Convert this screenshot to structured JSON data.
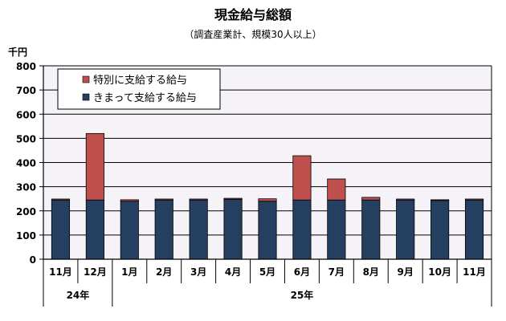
{
  "chart_data": {
    "type": "bar",
    "stacked": true,
    "title": "現金給与総額",
    "subtitle": "（調査産業計、規模30人以上）",
    "ylabel": "千円",
    "ylim": [
      0,
      800
    ],
    "yticks": [
      0,
      100,
      200,
      300,
      400,
      500,
      600,
      700,
      800
    ],
    "grid": true,
    "legend_position": "top-left",
    "categories": [
      "11月",
      "12月",
      "1月",
      "2月",
      "3月",
      "4月",
      "5月",
      "6月",
      "7月",
      "8月",
      "9月",
      "10月",
      "11月"
    ],
    "year_groups": [
      {
        "label": "24年",
        "count": 2
      },
      {
        "label": "25年",
        "count": 11
      }
    ],
    "series": [
      {
        "name": "きまって支給する給与",
        "color": "#243f60",
        "values": [
          245,
          245,
          240,
          245,
          245,
          248,
          240,
          245,
          245,
          245,
          245,
          243,
          245
        ]
      },
      {
        "name": "特別に支給する給与",
        "color": "#c0504d",
        "values": [
          4,
          275,
          6,
          4,
          4,
          4,
          10,
          183,
          87,
          11,
          4,
          3,
          4
        ]
      }
    ],
    "plot_background": "#f5f3f7"
  }
}
